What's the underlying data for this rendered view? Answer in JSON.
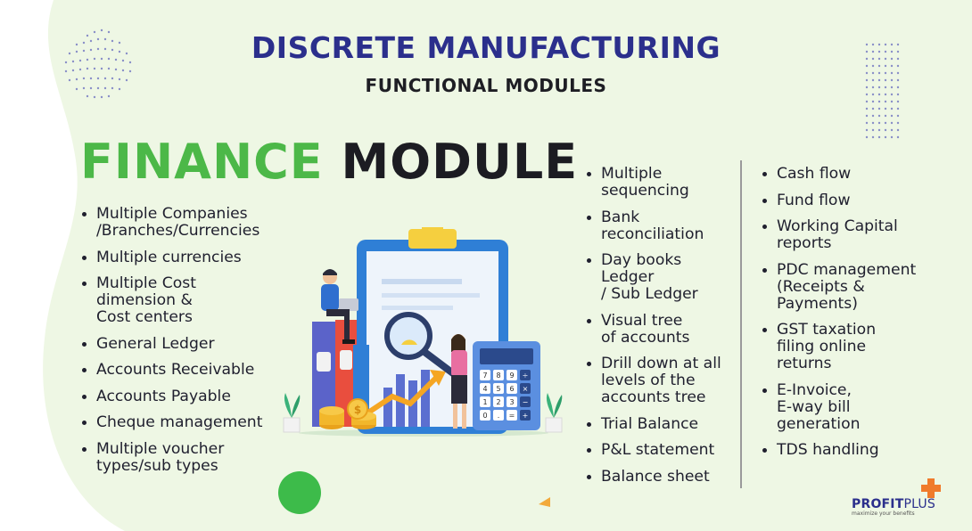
{
  "header": {
    "title": "DISCRETE MANUFACTURING",
    "subtitle": "FUNCTIONAL MODULES"
  },
  "heading": {
    "word1": "FINANCE",
    "word2": "MODULE"
  },
  "colors": {
    "accent_green": "#4cb848",
    "title_blue": "#2b2f8c",
    "background_blob": "#eef7e4"
  },
  "features_left": [
    "Multiple Companies\n/Branches/Currencies",
    "Multiple currencies",
    "Multiple Cost\ndimension &\nCost centers",
    "General Ledger",
    "Accounts Receivable",
    "Accounts Payable",
    "Cheque management",
    "Multiple voucher\ntypes/sub types"
  ],
  "features_middle": [
    "Multiple\nsequencing",
    "Bank\nreconciliation",
    "Day books\nLedger\n/ Sub Ledger",
    "Visual tree\nof accounts",
    "Drill down at all\nlevels of the\naccounts tree",
    "Trial Balance",
    "P&L statement",
    "Balance sheet"
  ],
  "features_right": [
    "Cash flow",
    "Fund flow",
    "Working Capital\nreports",
    "PDC management\n(Receipts &\nPayments)",
    "GST taxation\nfiling online\nreturns",
    "E-Invoice,\nE-way bill\ngeneration",
    "TDS handling"
  ],
  "illustration": {
    "icons": [
      "clipboard-icon",
      "magnifier-icon",
      "calculator-icon",
      "binders-icon",
      "coins-icon",
      "growth-arrow-icon",
      "businessman-icon",
      "businesswoman-icon",
      "plant-icon"
    ],
    "calculator_keys": [
      "7",
      "8",
      "9",
      "÷",
      "4",
      "5",
      "6",
      "×",
      "1",
      "2",
      "3",
      "−",
      "0",
      ".",
      "=",
      "+"
    ],
    "coin_symbol": "$"
  },
  "logo": {
    "name_bold": "PROFIT",
    "name_rest": "PLUS",
    "tagline": "maximize your benefits"
  }
}
